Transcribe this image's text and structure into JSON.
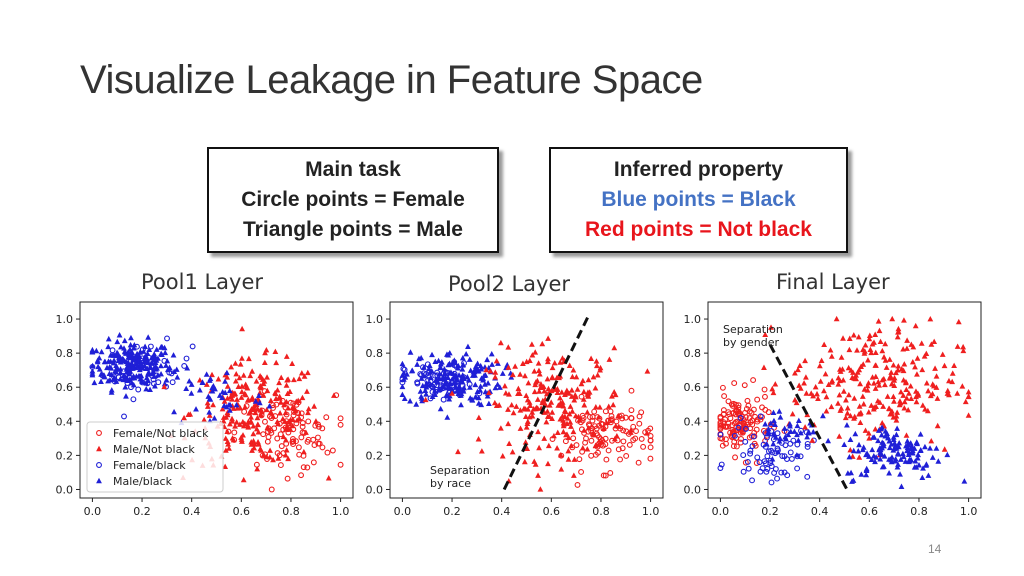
{
  "slide": {
    "title": "Visualize Leakage in Feature Space",
    "page_number": "14"
  },
  "boxes": {
    "main_task": {
      "line1": "Main task",
      "line2": "Circle points = Female",
      "line3": "Triangle points = Male"
    },
    "inferred": {
      "line1": "Inferred property",
      "line2": "Blue points = Black",
      "line3": "Red points = Not black",
      "color_blue": "#4472c4",
      "color_red": "#e8151c"
    }
  },
  "colors": {
    "red": "#ef1f1f",
    "blue": "#1f1fd6"
  },
  "chart_data": [
    {
      "type": "scatter",
      "title": "Pool1 Layer",
      "xlim": [
        -0.05,
        1.05
      ],
      "ylim": [
        -0.05,
        1.1
      ],
      "xticks": [
        "0.0",
        "0.2",
        "0.4",
        "0.6",
        "0.8",
        "1.0"
      ],
      "yticks": [
        "0.0",
        "0.2",
        "0.4",
        "0.6",
        "0.8",
        "1.0"
      ],
      "legend": {
        "placement": "lower-left",
        "entries": [
          "Female/Not black",
          "Male/Not black",
          "Female/black",
          "Male/black"
        ]
      },
      "clusters": [
        {
          "series": "Male/black",
          "color": "blue",
          "marker": "triangle",
          "cx": 0.16,
          "cy": 0.73,
          "sx": 0.08,
          "sy": 0.07,
          "n": 230
        },
        {
          "series": "Female/black",
          "color": "blue",
          "marker": "circle",
          "cx": 0.22,
          "cy": 0.7,
          "sx": 0.09,
          "sy": 0.08,
          "n": 40
        },
        {
          "series": "Male/Not black",
          "color": "red",
          "marker": "triangle",
          "cx": 0.66,
          "cy": 0.45,
          "sx": 0.13,
          "sy": 0.15,
          "n": 240
        },
        {
          "series": "Female/Not black",
          "color": "red",
          "marker": "circle",
          "cx": 0.78,
          "cy": 0.33,
          "sx": 0.1,
          "sy": 0.11,
          "n": 100
        },
        {
          "series": "Male/black",
          "color": "blue",
          "marker": "triangle",
          "cx": 0.5,
          "cy": 0.55,
          "sx": 0.1,
          "sy": 0.1,
          "n": 40
        }
      ]
    },
    {
      "type": "scatter",
      "title": "Pool2 Layer",
      "xlim": [
        -0.05,
        1.05
      ],
      "ylim": [
        -0.05,
        1.1
      ],
      "xticks": [
        "0.0",
        "0.2",
        "0.4",
        "0.6",
        "0.8",
        "1.0"
      ],
      "yticks": [
        "0.0",
        "0.2",
        "0.4",
        "0.6",
        "0.8",
        "1.0"
      ],
      "separation": {
        "label1": "Separation",
        "label2": "by race",
        "x1": 0.41,
        "y1": 0.0,
        "x2": 0.75,
        "y2": 1.02
      },
      "clusters": [
        {
          "series": "Male/black",
          "color": "blue",
          "marker": "triangle",
          "cx": 0.2,
          "cy": 0.65,
          "sx": 0.1,
          "sy": 0.08,
          "n": 180
        },
        {
          "series": "Female/black",
          "color": "blue",
          "marker": "circle",
          "cx": 0.15,
          "cy": 0.62,
          "sx": 0.07,
          "sy": 0.06,
          "n": 60
        },
        {
          "series": "Male/Not black",
          "color": "red",
          "marker": "triangle",
          "cx": 0.62,
          "cy": 0.5,
          "sx": 0.14,
          "sy": 0.16,
          "n": 240
        },
        {
          "series": "Female/Not black",
          "color": "red",
          "marker": "circle",
          "cx": 0.82,
          "cy": 0.32,
          "sx": 0.09,
          "sy": 0.1,
          "n": 110
        }
      ]
    },
    {
      "type": "scatter",
      "title": "Final Layer",
      "xlim": [
        -0.05,
        1.05
      ],
      "ylim": [
        -0.05,
        1.1
      ],
      "xticks": [
        "0.0",
        "0.2",
        "0.4",
        "0.6",
        "0.8",
        "1.0"
      ],
      "yticks": [
        "0.0",
        "0.2",
        "0.4",
        "0.6",
        "0.8",
        "1.0"
      ],
      "separation": {
        "label1": "Separation",
        "label2": "by gender",
        "x1": 0.2,
        "y1": 0.85,
        "x2": 0.51,
        "y2": 0.0
      },
      "clusters": [
        {
          "series": "Female/Not black",
          "color": "red",
          "marker": "circle",
          "cx": 0.08,
          "cy": 0.38,
          "sx": 0.06,
          "sy": 0.09,
          "n": 130
        },
        {
          "series": "Female/black",
          "color": "blue",
          "marker": "circle",
          "cx": 0.2,
          "cy": 0.22,
          "sx": 0.08,
          "sy": 0.08,
          "n": 70
        },
        {
          "series": "Male/Not black",
          "color": "red",
          "marker": "triangle",
          "cx": 0.62,
          "cy": 0.62,
          "sx": 0.17,
          "sy": 0.18,
          "n": 260
        },
        {
          "series": "Male/black",
          "color": "blue",
          "marker": "triangle",
          "cx": 0.7,
          "cy": 0.22,
          "sx": 0.1,
          "sy": 0.08,
          "n": 130
        },
        {
          "series": "Male/black",
          "color": "blue",
          "marker": "triangle",
          "cx": 0.27,
          "cy": 0.35,
          "sx": 0.06,
          "sy": 0.08,
          "n": 40
        }
      ]
    }
  ]
}
